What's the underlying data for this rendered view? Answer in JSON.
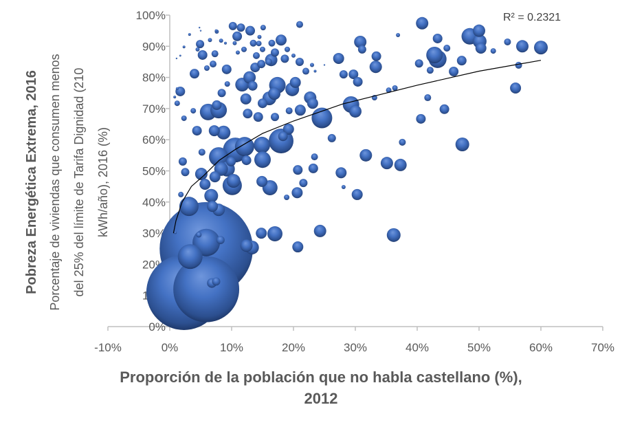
{
  "chart_data": {
    "type": "scatter",
    "subtype": "bubble",
    "title": "",
    "xlabel_lines": [
      "Proporción de la población que no habla castellano (%),",
      "2012"
    ],
    "ylabel_main": "Pobreza Energética Extrema, 2016",
    "ylabel_sub_lines": [
      "Porcentaje de viviendas que consumen menos",
      "del 25% del límite de Tarifa Dignidad (210",
      "kWh/año), 2016 (%)"
    ],
    "xlim": [
      -10,
      70
    ],
    "ylim": [
      0,
      100
    ],
    "x_ticks": [
      -10,
      0,
      10,
      20,
      30,
      40,
      50,
      60,
      70
    ],
    "x_tick_labels": [
      "-10%",
      "0%",
      "10%",
      "20%",
      "30%",
      "40%",
      "50%",
      "60%",
      "70%"
    ],
    "y_ticks": [
      0,
      10,
      20,
      30,
      40,
      50,
      60,
      70,
      80,
      90,
      100
    ],
    "y_tick_labels": [
      "0%",
      "10%",
      "20%",
      "30%",
      "40%",
      "50%",
      "60%",
      "70%",
      "80%",
      "90%",
      "100%"
    ],
    "grid": false,
    "bubble_color": "#4472C4",
    "trendline": {
      "type": "logarithmic",
      "label": "R² = 0.2321",
      "points": [
        [
          0.6,
          30
        ],
        [
          1,
          34
        ],
        [
          2,
          40
        ],
        [
          3.5,
          45
        ],
        [
          5.5,
          48.5
        ],
        [
          8,
          53.4
        ],
        [
          10.7,
          57
        ],
        [
          15,
          62
        ],
        [
          20,
          66
        ],
        [
          28,
          71.5
        ],
        [
          35,
          75
        ],
        [
          40,
          77.5
        ],
        [
          50,
          82
        ],
        [
          60,
          85.5
        ]
      ]
    },
    "points": [
      [
        5.9,
        25,
        4600
      ],
      [
        2.3,
        11,
        3000
      ],
      [
        5.9,
        12,
        2300
      ],
      [
        18,
        59.6,
        324
      ],
      [
        24.6,
        67,
        225
      ],
      [
        3.3,
        22.5,
        324
      ],
      [
        5.9,
        27,
        400
      ],
      [
        4.5,
        89,
        9
      ],
      [
        5,
        95,
        1
      ],
      [
        6.5,
        92,
        9
      ],
      [
        7.5,
        95,
        4
      ],
      [
        9,
        91,
        4
      ],
      [
        10.5,
        91,
        9
      ],
      [
        11,
        88,
        9
      ],
      [
        11.5,
        96,
        36
      ],
      [
        12,
        89,
        16
      ],
      [
        13,
        95,
        49
      ],
      [
        13.5,
        91,
        25
      ],
      [
        14,
        87,
        25
      ],
      [
        14.5,
        93,
        9
      ],
      [
        15,
        89,
        16
      ],
      [
        16,
        85,
        25
      ],
      [
        16.5,
        91,
        25
      ],
      [
        17,
        88,
        36
      ],
      [
        18,
        92,
        64
      ],
      [
        19,
        89,
        16
      ],
      [
        20,
        87,
        9
      ],
      [
        21,
        97,
        25
      ],
      [
        21,
        85,
        36
      ],
      [
        22,
        82,
        25
      ],
      [
        23,
        84,
        9
      ],
      [
        23.5,
        82,
        4
      ],
      [
        25,
        84,
        1
      ],
      [
        40.8,
        97.4,
        81
      ],
      [
        36.9,
        93.6,
        9
      ],
      [
        43.3,
        92.5,
        49
      ],
      [
        50,
        95,
        81
      ],
      [
        50.1,
        91.6,
        100
      ],
      [
        50.3,
        89.4,
        64
      ],
      [
        57,
        90,
        81
      ],
      [
        60,
        89.6,
        100
      ],
      [
        54.6,
        91.4,
        25
      ],
      [
        52.3,
        88.5,
        16
      ],
      [
        48.5,
        93.2,
        144
      ],
      [
        44.8,
        89.4,
        25
      ],
      [
        42.8,
        87.2,
        144
      ],
      [
        43.3,
        85.9,
        169
      ],
      [
        40.3,
        84.5,
        36
      ],
      [
        42.1,
        82.3,
        25
      ],
      [
        45.9,
        81.9,
        49
      ],
      [
        47.2,
        85.4,
        49
      ],
      [
        41.7,
        73.5,
        25
      ],
      [
        44.4,
        69.8,
        49
      ],
      [
        40.6,
        66.7,
        49
      ],
      [
        47.3,
        58.5,
        100
      ],
      [
        55.9,
        76.6,
        64
      ],
      [
        56.4,
        83.9,
        25
      ],
      [
        35.4,
        75.9,
        16
      ],
      [
        36.4,
        76.6,
        16
      ],
      [
        33.3,
        83.4,
        81
      ],
      [
        33.4,
        86.8,
        49
      ],
      [
        31.1,
        89,
        36
      ],
      [
        30.8,
        91.4,
        81
      ],
      [
        27.3,
        86.1,
        64
      ],
      [
        28.1,
        81,
        36
      ],
      [
        29.7,
        81,
        49
      ],
      [
        30.4,
        78.6,
        49
      ],
      [
        29.3,
        71.3,
        144
      ],
      [
        30,
        69.1,
        81
      ],
      [
        33.1,
        73.5,
        16
      ],
      [
        26.2,
        60.5,
        36
      ],
      [
        31.7,
        55,
        81
      ],
      [
        35.1,
        52.5,
        81
      ],
      [
        37.3,
        51.9,
        81
      ],
      [
        37.6,
        59.2,
        25
      ],
      [
        27.7,
        49.4,
        64
      ],
      [
        28.1,
        44.8,
        9
      ],
      [
        30.3,
        42.4,
        64
      ],
      [
        24.3,
        30.7,
        81
      ],
      [
        36.2,
        29.4,
        100
      ],
      [
        20.7,
        25.6,
        64
      ],
      [
        20.6,
        43,
        64
      ],
      [
        21.6,
        46.1,
        36
      ],
      [
        23.2,
        50.8,
        49
      ],
      [
        23.4,
        54.5,
        25
      ],
      [
        20.7,
        50.3,
        49
      ],
      [
        18.9,
        41.5,
        16
      ],
      [
        16.2,
        44.6,
        121
      ],
      [
        14.9,
        46.6,
        64
      ],
      [
        17,
        29.8,
        121
      ],
      [
        14.8,
        30,
        64
      ],
      [
        13.3,
        25.4,
        100
      ],
      [
        12.4,
        26,
        81
      ],
      [
        14.9,
        58.3,
        144
      ],
      [
        15,
        53.6,
        144
      ],
      [
        12.1,
        57.8,
        196
      ],
      [
        12.4,
        53.4,
        49
      ],
      [
        10.6,
        56.7,
        324
      ],
      [
        9.3,
        50.6,
        121
      ],
      [
        1.7,
        75.5,
        49
      ],
      [
        1.2,
        71.7,
        16
      ],
      [
        2.3,
        66.9,
        16
      ],
      [
        3.8,
        69.3,
        16
      ],
      [
        4,
        81.2,
        49
      ],
      [
        9.2,
        82.6,
        49
      ],
      [
        7.6,
        71.1,
        49
      ],
      [
        6.2,
        68.9,
        144
      ],
      [
        7.9,
        69.5,
        144
      ],
      [
        7.2,
        62.9,
        64
      ],
      [
        8.7,
        62.3,
        100
      ],
      [
        4.4,
        62.9,
        49
      ],
      [
        5.2,
        56,
        25
      ],
      [
        7.9,
        54.5,
        196
      ],
      [
        8.3,
        50.6,
        100
      ],
      [
        10.1,
        45.3,
        196
      ],
      [
        10.3,
        46.8,
        100
      ],
      [
        7.3,
        48.1,
        64
      ],
      [
        5.1,
        49,
        81
      ],
      [
        5.7,
        45.7,
        64
      ],
      [
        6.7,
        42,
        100
      ],
      [
        6.9,
        38.6,
        64
      ],
      [
        7.9,
        37.5,
        81
      ],
      [
        3.1,
        38.6,
        196
      ],
      [
        2.5,
        49.6,
        36
      ],
      [
        2.1,
        53,
        36
      ],
      [
        1.8,
        42.4,
        16
      ],
      [
        9.9,
        53,
        49
      ],
      [
        11.7,
        77.7,
        100
      ],
      [
        13.4,
        77.3,
        49
      ],
      [
        12.9,
        80,
        81
      ],
      [
        13.8,
        83.2,
        49
      ],
      [
        14.8,
        84.3,
        36
      ],
      [
        16.4,
        85.6,
        81
      ],
      [
        18.6,
        86,
        36
      ],
      [
        15,
        71.7,
        49
      ],
      [
        16.1,
        73.3,
        100
      ],
      [
        17.4,
        77.5,
        144
      ],
      [
        16.9,
        74.8,
        81
      ],
      [
        19.8,
        76.2,
        100
      ],
      [
        20.3,
        78.4,
        64
      ],
      [
        21.1,
        69.5,
        64
      ],
      [
        22.7,
        73.5,
        81
      ],
      [
        23.1,
        71.7,
        64
      ],
      [
        19.2,
        63.4,
        64
      ],
      [
        18.3,
        61.1,
        49
      ],
      [
        19.3,
        69.3,
        25
      ],
      [
        17,
        67.3,
        36
      ],
      [
        12.6,
        68.4,
        49
      ],
      [
        14.3,
        67.3,
        49
      ],
      [
        12.3,
        73.1,
        64
      ],
      [
        8.4,
        75,
        36
      ],
      [
        9.3,
        77.9,
        16
      ],
      [
        6,
        83,
        16
      ],
      [
        5.3,
        87.2,
        49
      ],
      [
        7,
        84.3,
        25
      ],
      [
        4.9,
        90.7,
        36
      ],
      [
        10.2,
        96.5,
        36
      ],
      [
        10.9,
        93.2,
        49
      ],
      [
        7.6,
        94.7,
        9
      ],
      [
        15.1,
        96,
        16
      ],
      [
        14.4,
        90.9,
        16
      ],
      [
        7.3,
        87.6,
        25
      ],
      [
        8.3,
        91.8,
        9
      ],
      [
        0.8,
        73.7,
        4
      ],
      [
        1.2,
        76.4,
        4
      ],
      [
        1.1,
        86.1,
        1
      ],
      [
        1.7,
        87,
        2
      ],
      [
        2.3,
        89.8,
        4
      ],
      [
        3.2,
        93.8,
        4
      ],
      [
        4.8,
        96,
        1
      ],
      [
        0.9,
        30.2,
        4
      ],
      [
        4.7,
        29.5,
        16
      ],
      [
        8.2,
        27.8,
        36
      ],
      [
        6.8,
        14,
        49
      ],
      [
        7.5,
        14.5,
        36
      ]
    ]
  }
}
